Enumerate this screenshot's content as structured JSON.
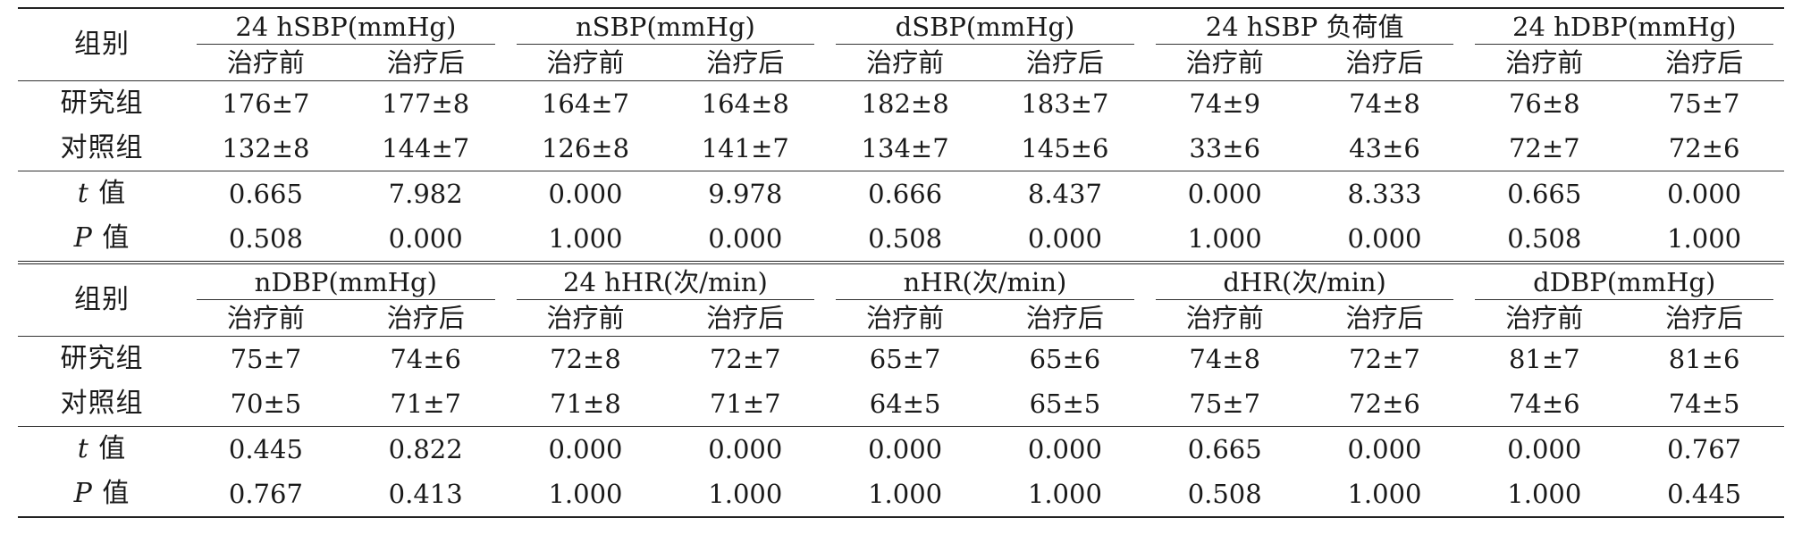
{
  "blocks": [
    {
      "group_label": "组别",
      "columns": [
        "24 hSBP(mmHg)",
        "nSBP(mmHg)",
        "dSBP(mmHg)",
        "24 hSBP 负荷值",
        "24 hDBP(mmHg)"
      ],
      "sub": [
        "治疗前",
        "治疗后"
      ],
      "rows": [
        {
          "label": "研究组",
          "values": [
            "176±7",
            "177±8",
            "164±7",
            "164±8",
            "182±8",
            "183±7",
            "74±9",
            "74±8",
            "76±8",
            "75±7"
          ]
        },
        {
          "label": "对照组",
          "values": [
            "132±8",
            "144±7",
            "126±8",
            "141±7",
            "134±7",
            "145±6",
            "33±6",
            "43±6",
            "72±7",
            "72±6"
          ]
        }
      ],
      "stats": [
        {
          "symbol": "t",
          "suffix": " 值",
          "values": [
            "0.665",
            "7.982",
            "0.000",
            "9.978",
            "0.666",
            "8.437",
            "0.000",
            "8.333",
            "0.665",
            "0.000"
          ]
        },
        {
          "symbol": "P",
          "suffix": " 值",
          "values": [
            "0.508",
            "0.000",
            "1.000",
            "0.000",
            "0.508",
            "0.000",
            "1.000",
            "0.000",
            "0.508",
            "1.000"
          ]
        }
      ]
    },
    {
      "group_label": "组别",
      "columns": [
        "nDBP(mmHg)",
        "24 hHR(次/min)",
        "nHR(次/min)",
        "dHR(次/min)",
        "dDBP(mmHg)"
      ],
      "sub": [
        "治疗前",
        "治疗后"
      ],
      "rows": [
        {
          "label": "研究组",
          "values": [
            "75±7",
            "74±6",
            "72±8",
            "72±7",
            "65±7",
            "65±6",
            "74±8",
            "72±7",
            "81±7",
            "81±6"
          ]
        },
        {
          "label": "对照组",
          "values": [
            "70±5",
            "71±7",
            "71±8",
            "71±7",
            "64±5",
            "65±5",
            "75±7",
            "72±6",
            "74±6",
            "74±5"
          ]
        }
      ],
      "stats": [
        {
          "symbol": "t",
          "suffix": " 值",
          "values": [
            "0.445",
            "0.822",
            "0.000",
            "0.000",
            "0.000",
            "0.000",
            "0.665",
            "0.000",
            "0.000",
            "0.767"
          ]
        },
        {
          "symbol": "P",
          "suffix": " 值",
          "values": [
            "0.767",
            "0.413",
            "1.000",
            "1.000",
            "1.000",
            "1.000",
            "0.508",
            "1.000",
            "1.000",
            "0.445"
          ]
        }
      ]
    }
  ]
}
